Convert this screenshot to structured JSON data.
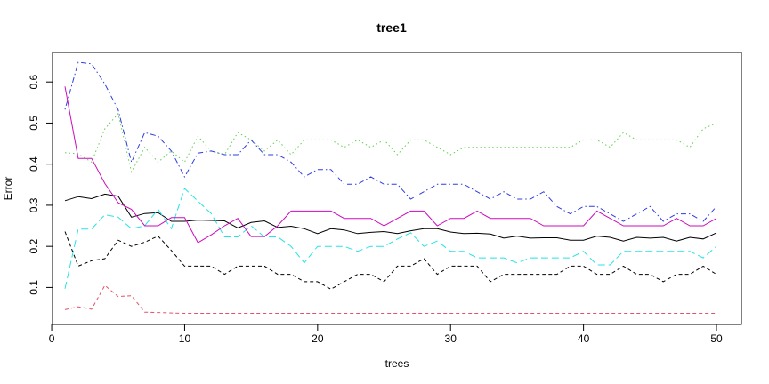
{
  "chart_data": {
    "type": "line",
    "title": "tree1",
    "xlabel": "trees",
    "ylabel": "Error",
    "xlim": [
      1,
      50
    ],
    "ylim": [
      0.036,
      0.648
    ],
    "x_ticks": [
      0,
      10,
      20,
      30,
      40,
      50
    ],
    "y_ticks": [
      0.1,
      0.2,
      0.3,
      0.4,
      0.5,
      0.6
    ],
    "grid": false,
    "legend": "none",
    "x": [
      1,
      2,
      3,
      4,
      5,
      6,
      7,
      8,
      9,
      10,
      11,
      12,
      13,
      14,
      15,
      16,
      17,
      18,
      19,
      20,
      21,
      22,
      23,
      24,
      25,
      26,
      27,
      28,
      29,
      30,
      31,
      32,
      33,
      34,
      35,
      36,
      37,
      38,
      39,
      40,
      41,
      42,
      43,
      44,
      45,
      46,
      47,
      48,
      49,
      50
    ],
    "series": [
      {
        "color": "#000000",
        "dash": "solid",
        "values": [
          0.311,
          0.321,
          0.316,
          0.327,
          0.322,
          0.271,
          0.28,
          0.282,
          0.261,
          0.261,
          0.264,
          0.263,
          0.262,
          0.245,
          0.258,
          0.262,
          0.246,
          0.249,
          0.243,
          0.231,
          0.243,
          0.24,
          0.231,
          0.234,
          0.236,
          0.231,
          0.238,
          0.243,
          0.243,
          0.235,
          0.231,
          0.232,
          0.23,
          0.22,
          0.225,
          0.22,
          0.221,
          0.221,
          0.215,
          0.215,
          0.225,
          0.222,
          0.213,
          0.222,
          0.22,
          0.222,
          0.213,
          0.222,
          0.218,
          0.233
        ]
      },
      {
        "color": "#df536b",
        "dash": "short",
        "values": [
          0.046,
          0.053,
          0.047,
          0.105,
          0.078,
          0.08,
          0.04,
          0.039,
          0.038,
          0.037,
          0.037,
          0.037,
          0.037,
          0.037,
          0.037,
          0.037,
          0.037,
          0.037,
          0.037,
          0.037,
          0.037,
          0.037,
          0.037,
          0.037,
          0.037,
          0.037,
          0.037,
          0.037,
          0.037,
          0.037,
          0.037,
          0.037,
          0.037,
          0.037,
          0.037,
          0.037,
          0.037,
          0.037,
          0.037,
          0.037,
          0.037,
          0.037,
          0.037,
          0.037,
          0.037,
          0.037,
          0.037,
          0.037,
          0.037,
          0.037
        ]
      },
      {
        "color": "#61d04f",
        "dash": "dot",
        "values": [
          0.428,
          0.425,
          0.405,
          0.486,
          0.523,
          0.381,
          0.441,
          0.405,
          0.432,
          0.405,
          0.468,
          0.432,
          0.423,
          0.477,
          0.459,
          0.432,
          0.459,
          0.423,
          0.459,
          0.459,
          0.459,
          0.441,
          0.459,
          0.441,
          0.459,
          0.423,
          0.459,
          0.459,
          0.441,
          0.423,
          0.441,
          0.441,
          0.441,
          0.441,
          0.441,
          0.441,
          0.441,
          0.441,
          0.441,
          0.459,
          0.459,
          0.441,
          0.477,
          0.459,
          0.459,
          0.459,
          0.459,
          0.441,
          0.486,
          0.5
        ]
      },
      {
        "color": "#2e3de0",
        "dash": "dotdash",
        "values": [
          0.533,
          0.648,
          0.644,
          0.595,
          0.532,
          0.405,
          0.477,
          0.468,
          0.432,
          0.369,
          0.427,
          0.432,
          0.423,
          0.423,
          0.459,
          0.423,
          0.423,
          0.405,
          0.369,
          0.387,
          0.387,
          0.351,
          0.351,
          0.369,
          0.351,
          0.351,
          0.315,
          0.333,
          0.351,
          0.351,
          0.351,
          0.333,
          0.315,
          0.333,
          0.315,
          0.315,
          0.333,
          0.297,
          0.279,
          0.297,
          0.297,
          0.279,
          0.261,
          0.279,
          0.297,
          0.261,
          0.279,
          0.279,
          0.261,
          0.297
        ]
      },
      {
        "color": "#28e2e5",
        "dash": "long",
        "values": [
          0.097,
          0.242,
          0.242,
          0.277,
          0.271,
          0.243,
          0.25,
          0.29,
          0.243,
          0.341,
          0.31,
          0.28,
          0.223,
          0.223,
          0.25,
          0.223,
          0.223,
          0.2,
          0.16,
          0.2,
          0.2,
          0.2,
          0.188,
          0.2,
          0.2,
          0.218,
          0.233,
          0.2,
          0.213,
          0.188,
          0.188,
          0.172,
          0.172,
          0.172,
          0.16,
          0.172,
          0.172,
          0.172,
          0.172,
          0.188,
          0.155,
          0.155,
          0.188,
          0.188,
          0.188,
          0.188,
          0.188,
          0.188,
          0.172,
          0.2
        ]
      },
      {
        "color": "#cd0bbc",
        "dash": "solid",
        "values": [
          0.589,
          0.414,
          0.414,
          0.353,
          0.306,
          0.29,
          0.25,
          0.25,
          0.27,
          0.27,
          0.209,
          0.228,
          0.25,
          0.268,
          0.224,
          0.224,
          0.25,
          0.286,
          0.286,
          0.286,
          0.286,
          0.268,
          0.268,
          0.268,
          0.25,
          0.268,
          0.286,
          0.286,
          0.25,
          0.268,
          0.268,
          0.286,
          0.268,
          0.268,
          0.268,
          0.268,
          0.25,
          0.25,
          0.25,
          0.25,
          0.286,
          0.268,
          0.25,
          0.25,
          0.25,
          0.25,
          0.268,
          0.25,
          0.25,
          0.268
        ]
      },
      {
        "color": "#000000",
        "dash": "short",
        "values": [
          0.236,
          0.152,
          0.165,
          0.17,
          0.215,
          0.2,
          0.21,
          0.225,
          0.19,
          0.152,
          0.152,
          0.152,
          0.132,
          0.152,
          0.152,
          0.152,
          0.132,
          0.132,
          0.114,
          0.114,
          0.096,
          0.114,
          0.132,
          0.132,
          0.114,
          0.152,
          0.152,
          0.17,
          0.132,
          0.152,
          0.152,
          0.152,
          0.114,
          0.132,
          0.132,
          0.132,
          0.132,
          0.132,
          0.152,
          0.152,
          0.132,
          0.132,
          0.152,
          0.132,
          0.132,
          0.114,
          0.132,
          0.132,
          0.152,
          0.132
        ]
      }
    ]
  }
}
